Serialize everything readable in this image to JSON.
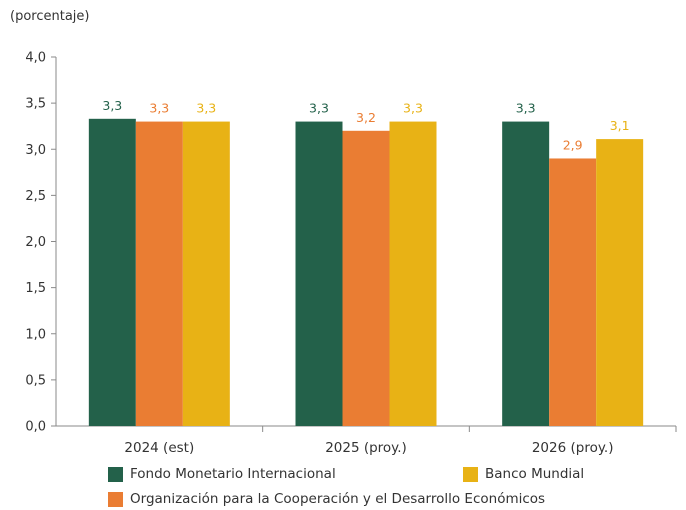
{
  "chart_data": {
    "type": "bar",
    "unit_label": "(porcentaje)",
    "categories": [
      "2024 (est)",
      "2025 (proy.)",
      "2026 (proy.)"
    ],
    "series": [
      {
        "name": "Fondo Monetario Internacional",
        "color": "#23614a",
        "values": [
          3.33,
          3.3,
          3.3
        ],
        "labels": [
          "3,3",
          "3,3",
          "3,3"
        ]
      },
      {
        "name": "Organización para la Cooperación y el Desarrollo Económicos",
        "color": "#ea7d33",
        "values": [
          3.3,
          3.2,
          2.9
        ],
        "labels": [
          "3,3",
          "3,2",
          "2,9"
        ]
      },
      {
        "name": "Banco Mundial",
        "color": "#e8b215",
        "values": [
          3.3,
          3.3,
          3.11
        ],
        "labels": [
          "3,3",
          "3,3",
          "3,1"
        ]
      }
    ],
    "ylim": [
      0,
      4.0
    ],
    "yticks": [
      0,
      0.5,
      1.0,
      1.5,
      2.0,
      2.5,
      3.0,
      3.5,
      4.0
    ],
    "ytick_labels": [
      "0,0",
      "0,5",
      "1,0",
      "1,5",
      "2,0",
      "2,5",
      "3,0",
      "3,5",
      "4,0"
    ],
    "legend_position": "bottom",
    "grid": false
  }
}
